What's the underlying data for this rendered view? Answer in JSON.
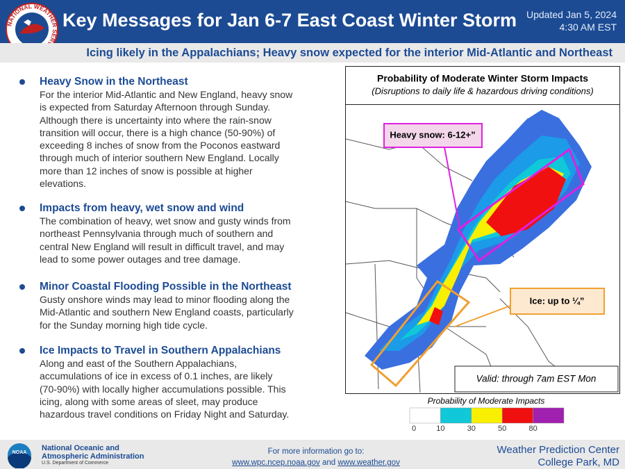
{
  "header": {
    "logo_text": "NATIONAL WEATHER SERVICE",
    "title": "Key Messages for Jan 6-7 East Coast Winter Storm",
    "updated": "Updated Jan 5, 2024",
    "time": "4:30 AM EST",
    "subtitle": "Icing likely in the Appalachians; Heavy snow expected for the interior Mid-Atlantic and Northeast"
  },
  "messages": [
    {
      "heading": "Heavy Snow in the Northeast",
      "lines": [
        "For the interior Mid-Atlantic and New England, heavy snow",
        "is expected from Saturday Afternoon through Sunday.",
        "Although there is uncertainty into where the rain-snow",
        "transition will occur, there is a high chance (50-90%) of",
        "exceeding 8 inches of snow from the Poconos eastward",
        "through much of interior southern New England. Locally",
        "more than 12 inches of snow is possible at higher",
        "elevations."
      ]
    },
    {
      "heading": "Impacts from heavy, wet snow and wind",
      "lines": [
        "The combination of heavy, wet snow and gusty winds from",
        "northeast Pennsylvania through much of southern and",
        "central New England will result in difficult travel, and may",
        "lead to some power outages and tree damage."
      ]
    },
    {
      "heading": "Minor Coastal Flooding Possible in the Northeast",
      "lines": [
        "Gusty onshore winds may lead to minor flooding along the",
        "Mid-Atlantic and southern New England coasts, particularly",
        "for the Sunday morning high tide cycle."
      ]
    },
    {
      "heading": "Ice Impacts to Travel in Southern Appalachians",
      "lines": [
        "Along and east of the Southern Appalachians,",
        "accumulations of ice in excess of 0.1 inches, are likely",
        "(70-90%) with locally higher accumulations possible. This",
        "icing, along with some areas of sleet, may produce",
        "hazardous travel conditions on Friday Night and Saturday."
      ]
    }
  ],
  "map": {
    "title": "Probability of Moderate Winter Storm Impacts",
    "subtitle": "(Disruptions to daily life & hazardous driving conditions)",
    "snow_callout": "Heavy snow: 6-12+”",
    "ice_callout": "Ice: up to ¼”",
    "valid": "Valid: through 7am EST Mon"
  },
  "legend": {
    "title": "Probability of Moderate Impacts",
    "labels": [
      0,
      10,
      30,
      50,
      80
    ],
    "colors": [
      "#ffffff",
      "#10c8d8",
      "#f8f000",
      "#f01010",
      "#a020b0"
    ]
  },
  "footer": {
    "noaa_logo": "NOAA",
    "agency": "National Oceanic and Atmospheric Administration",
    "department": "U.S. Department of Commerce",
    "info": "For more information go to:",
    "link1": "www.wpc.ncep.noaa.gov",
    "and": "and",
    "link2": "www.weather.gov",
    "center": "Weather Prediction Center",
    "location": "College Park, MD"
  }
}
